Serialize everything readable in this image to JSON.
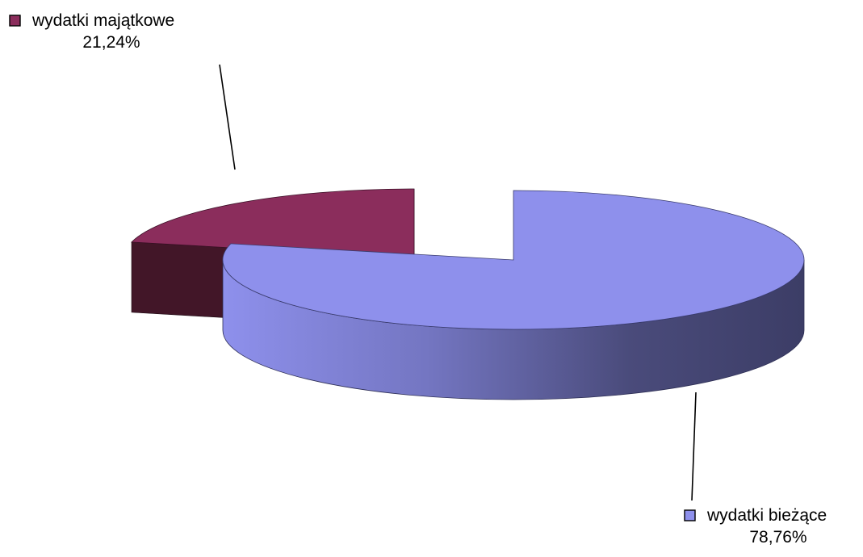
{
  "chart_data": {
    "type": "pie",
    "style": "3d-exploded",
    "slices": [
      {
        "label": "wydatki majątkowe",
        "value": 21.24,
        "value_label": "21,24%",
        "color": "#8B2D5C",
        "side_color": "#421628"
      },
      {
        "label": "wydatki bieżące",
        "value": 78.76,
        "value_label": "78,76%",
        "color": "#8E90EC",
        "side_color": "#3C3D66"
      }
    ]
  }
}
